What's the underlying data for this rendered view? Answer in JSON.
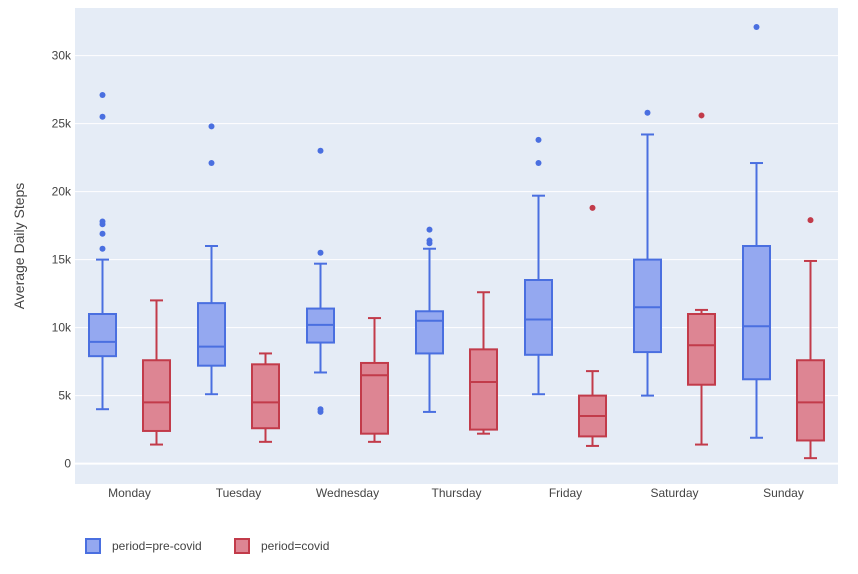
{
  "chart_data": {
    "type": "box",
    "ylabel": "Average Daily Steps",
    "xlabel": "",
    "ylim": [
      -1500,
      33500
    ],
    "y_ticks": [
      {
        "value": 0,
        "label": "0"
      },
      {
        "value": 5000,
        "label": "5k"
      },
      {
        "value": 10000,
        "label": "10k"
      },
      {
        "value": 15000,
        "label": "15k"
      },
      {
        "value": 20000,
        "label": "20k"
      },
      {
        "value": 25000,
        "label": "25k"
      },
      {
        "value": 30000,
        "label": "30k"
      }
    ],
    "categories": [
      "Monday",
      "Tuesday",
      "Wednesday",
      "Thursday",
      "Friday",
      "Saturday",
      "Sunday"
    ],
    "grid": true,
    "legend_placement": "bottom-left",
    "plot_background": "#e5ecf6",
    "series": [
      {
        "name": "period=pre-covid",
        "stroke": "#4a6fe0",
        "fill": "#94a8f0",
        "boxes": [
          {
            "min": 4000,
            "q1": 7900,
            "median": 8950,
            "q3": 11000,
            "max": 15000,
            "outliers": [
              15800,
              16900,
              17600,
              17800,
              25500,
              27100
            ]
          },
          {
            "min": 5100,
            "q1": 7200,
            "median": 8600,
            "q3": 11800,
            "max": 16000,
            "outliers": [
              22100,
              24800
            ]
          },
          {
            "min": 6700,
            "q1": 8900,
            "median": 10200,
            "q3": 11400,
            "max": 14700,
            "outliers": [
              3800,
              4000,
              15500,
              23000
            ]
          },
          {
            "min": 3800,
            "q1": 8100,
            "median": 10500,
            "q3": 11200,
            "max": 15800,
            "outliers": [
              16200,
              16400,
              17200
            ]
          },
          {
            "min": 5100,
            "q1": 8000,
            "median": 10600,
            "q3": 13500,
            "max": 19700,
            "outliers": [
              22100,
              23800
            ]
          },
          {
            "min": 5000,
            "q1": 8200,
            "median": 11500,
            "q3": 15000,
            "max": 24200,
            "outliers": [
              25800
            ]
          },
          {
            "min": 1900,
            "q1": 6200,
            "median": 10100,
            "q3": 16000,
            "max": 22100,
            "outliers": [
              32100
            ]
          }
        ]
      },
      {
        "name": "period=covid",
        "stroke": "#c23b4a",
        "fill": "#dd8593",
        "boxes": [
          {
            "min": 1400,
            "q1": 2400,
            "median": 4500,
            "q3": 7600,
            "max": 12000,
            "outliers": []
          },
          {
            "min": 1600,
            "q1": 2600,
            "median": 4500,
            "q3": 7300,
            "max": 8100,
            "outliers": []
          },
          {
            "min": 1600,
            "q1": 2200,
            "median": 6500,
            "q3": 7400,
            "max": 10700,
            "outliers": []
          },
          {
            "min": 2200,
            "q1": 2500,
            "median": 6000,
            "q3": 8400,
            "max": 12600,
            "outliers": []
          },
          {
            "min": 1300,
            "q1": 2000,
            "median": 3500,
            "q3": 5000,
            "max": 6800,
            "outliers": [
              18800
            ]
          },
          {
            "min": 1400,
            "q1": 5800,
            "median": 8700,
            "q3": 11000,
            "max": 11300,
            "outliers": [
              25600
            ]
          },
          {
            "min": 400,
            "q1": 1700,
            "median": 4500,
            "q3": 7600,
            "max": 14900,
            "outliers": [
              17900
            ]
          }
        ]
      }
    ]
  }
}
